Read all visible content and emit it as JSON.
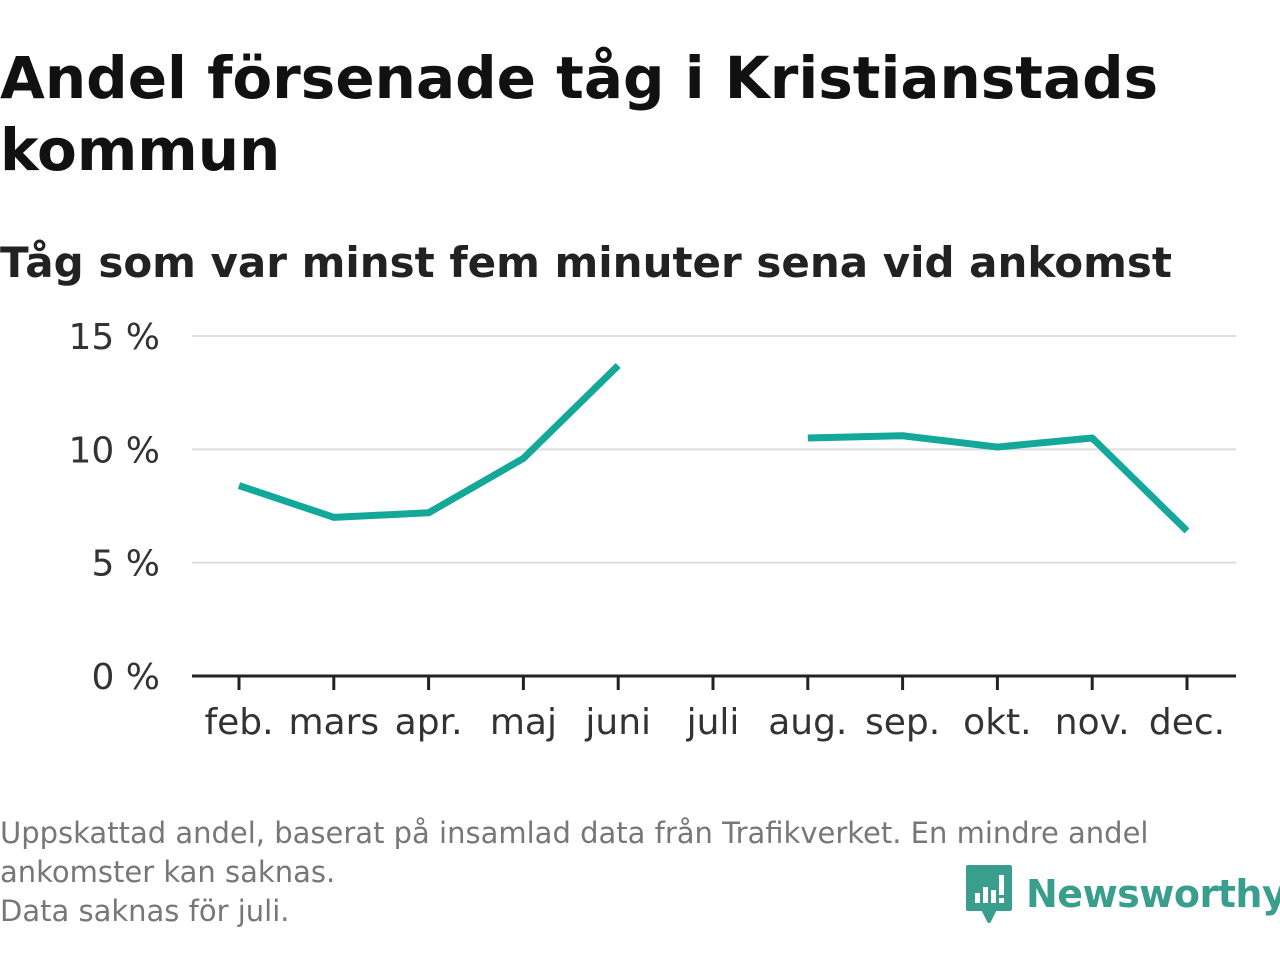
{
  "title": "Andel försenade tåg i Kristianstads kommun",
  "subtitle": "Tåg som var minst fem minuter sena vid ankomst",
  "footnote": {
    "line1": "Uppskattad andel, baserat på insamlad data från Trafikverket. En mindre andel",
    "line2": "ankomster kan saknas.",
    "line3": "Data saknas för juli."
  },
  "logo": {
    "text": "Newsworthy",
    "icon": "bar-chart-badge-icon",
    "color": "#3a9e8e"
  },
  "chart_data": {
    "type": "line",
    "categories": [
      "feb.",
      "mars",
      "apr.",
      "maj",
      "juni",
      "juli",
      "aug.",
      "sep.",
      "okt.",
      "nov.",
      "dec."
    ],
    "series": [
      {
        "values": [
          8.4,
          7.0,
          7.2,
          9.6,
          13.7,
          null,
          10.5,
          10.6,
          10.1,
          10.5,
          6.4
        ]
      }
    ],
    "yticks": [
      "0 %",
      "5 %",
      "10 %",
      "15 %"
    ],
    "ytick_values": [
      0,
      5,
      10,
      15
    ],
    "ylim": [
      0,
      15
    ],
    "grid": true,
    "line_color": "#14a89a",
    "grid_color": "#dddddd",
    "axis_color": "#222222"
  }
}
